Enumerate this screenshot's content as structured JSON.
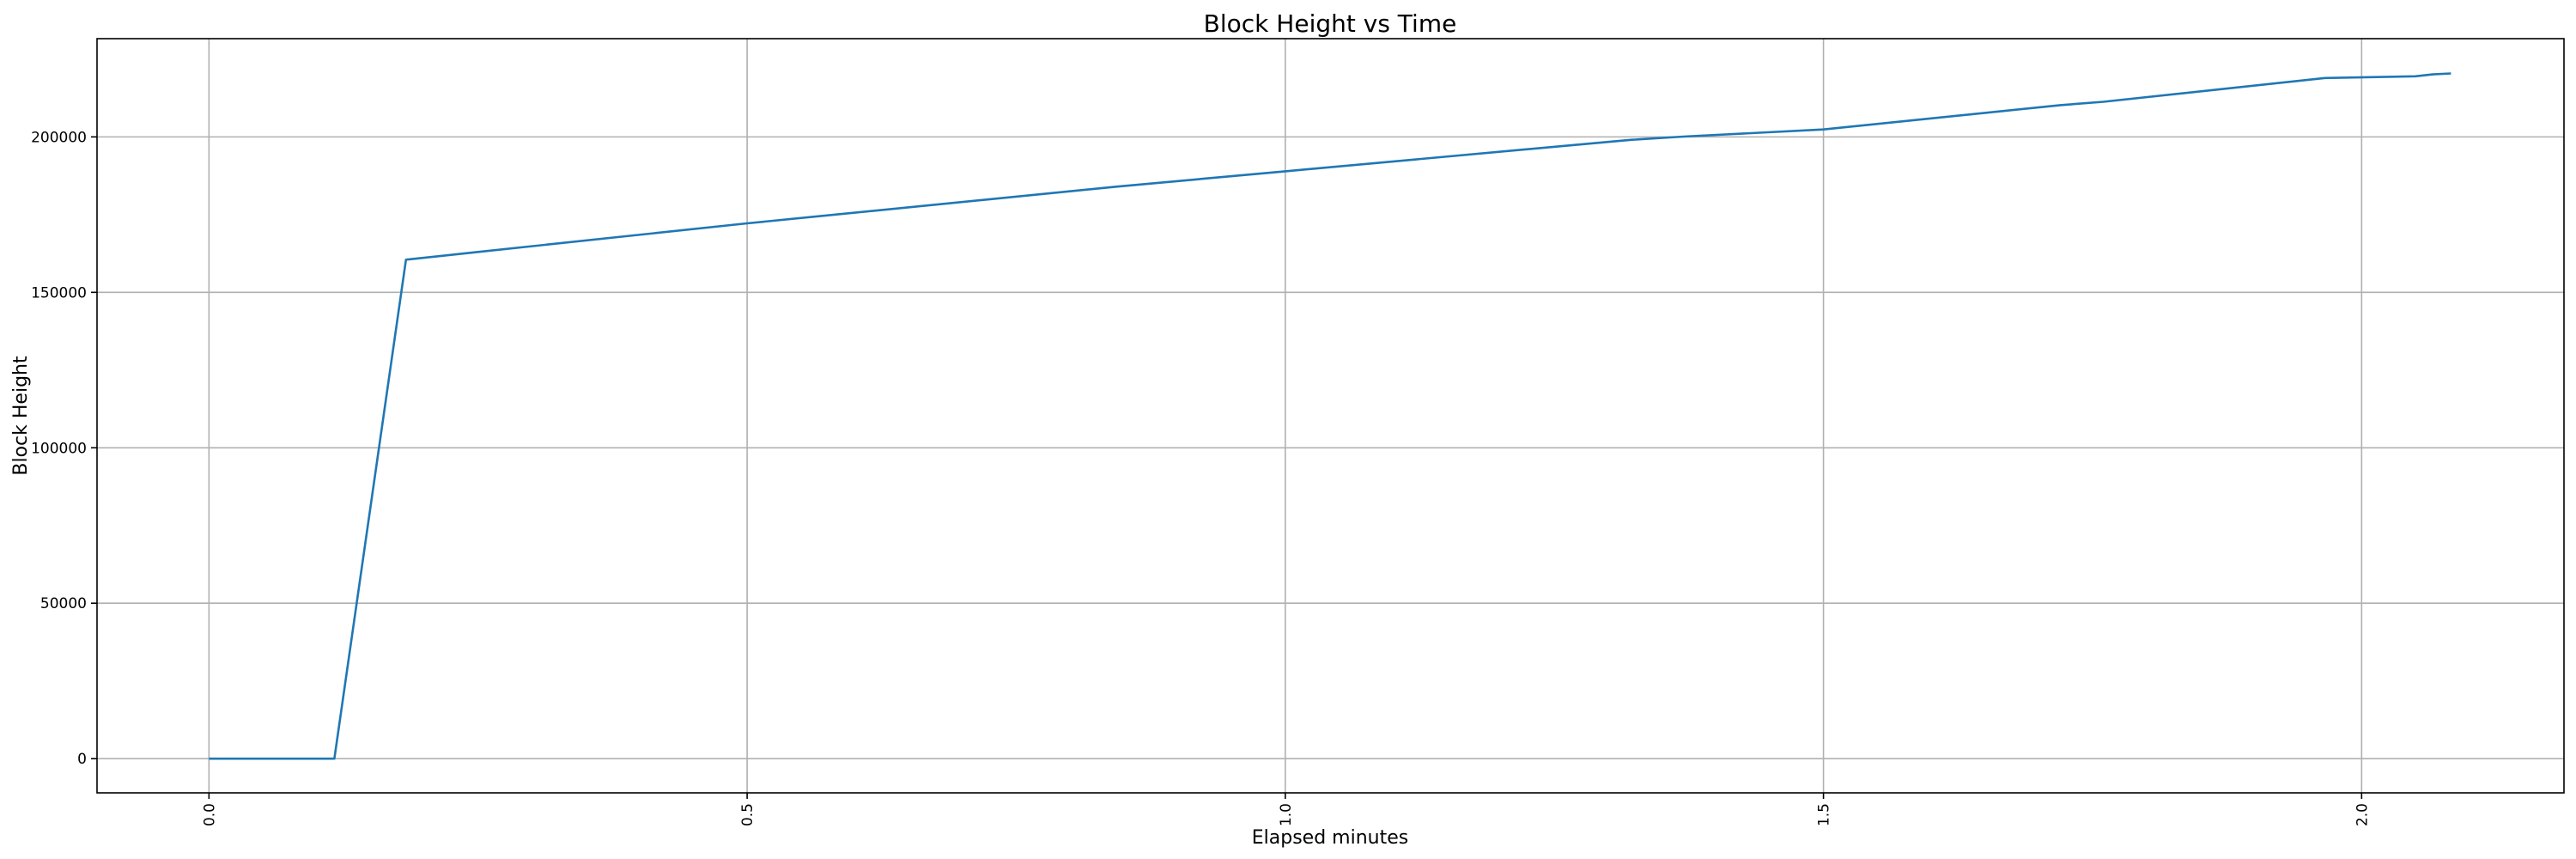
{
  "chart_data": {
    "type": "line",
    "title": "Block Height vs Time",
    "xlabel": "Elapsed minutes",
    "ylabel": "Block Height",
    "xlim": [
      -0.104,
      2.188
    ],
    "ylim": [
      -11000,
      231600
    ],
    "grid": true,
    "x_ticks": [
      0.0,
      0.5,
      1.0,
      1.5,
      2.0
    ],
    "x_tick_labels": [
      "0.0",
      "0.5",
      "1.0",
      "1.5",
      "2.0"
    ],
    "y_ticks": [
      0,
      50000,
      100000,
      150000,
      200000
    ],
    "y_tick_labels": [
      "0",
      "50000",
      "100000",
      "150000",
      "200000"
    ],
    "series": [
      {
        "color": "#1f77b4",
        "x": [
          0,
          0.1165,
          0.183,
          0.25,
          0.5,
          0.843,
          1.0,
          1.321,
          1.37,
          1.5,
          1.72,
          1.76,
          1.966,
          2.05,
          2.066,
          2.083
        ],
        "y": [
          0,
          0,
          160500,
          163000,
          172200,
          184000,
          188950,
          199050,
          200100,
          202400,
          210200,
          211300,
          218950,
          219500,
          220100,
          220400
        ]
      }
    ]
  }
}
